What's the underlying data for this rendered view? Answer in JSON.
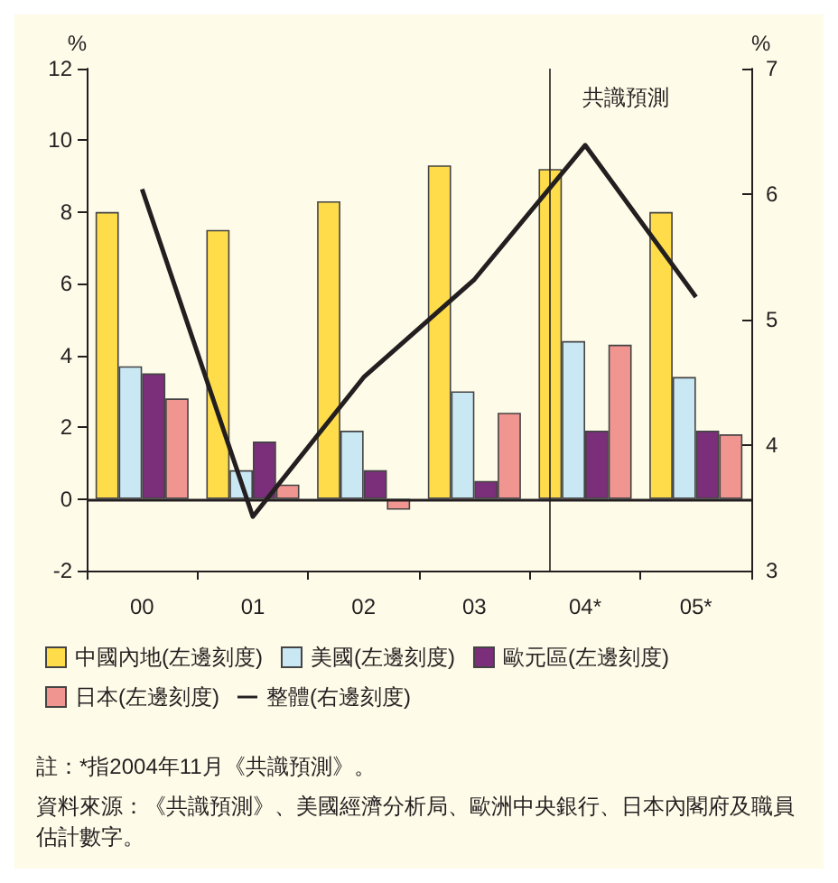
{
  "chart_data": {
    "type": "bar",
    "categories": [
      "00",
      "01",
      "02",
      "03",
      "04*",
      "05*"
    ],
    "series": [
      {
        "name": "中國內地(左邊刻度)",
        "color": "#fedc4a",
        "values": [
          8.0,
          7.5,
          8.3,
          9.3,
          9.2,
          8.0
        ]
      },
      {
        "name": "美國(左邊刻度)",
        "color": "#c9e8f4",
        "values": [
          3.7,
          0.8,
          1.9,
          3.0,
          4.4,
          3.4
        ]
      },
      {
        "name": "歐元區(左邊刻度)",
        "color": "#7b2e7a",
        "values": [
          3.5,
          1.6,
          0.8,
          0.5,
          1.9,
          1.9
        ]
      },
      {
        "name": "日本(左邊刻度)",
        "color": "#f09590",
        "values": [
          2.8,
          0.4,
          -0.3,
          2.4,
          4.3,
          1.8
        ]
      },
      {
        "name": "整體(右邊刻度)",
        "type": "line",
        "axis": "y2",
        "color": "#231f20",
        "values": [
          6.04,
          3.43,
          4.54,
          5.32,
          6.39,
          5.18
        ]
      }
    ],
    "ylabel": "%",
    "y2label": "%",
    "ylim": [
      -2,
      12
    ],
    "yticks": [
      -2,
      0,
      2,
      4,
      6,
      8,
      10,
      12
    ],
    "y2lim": [
      3,
      7
    ],
    "y2ticks": [
      3,
      4,
      5,
      6,
      7
    ],
    "ref_lines": [
      {
        "axis": "y",
        "value": 0
      },
      {
        "axis": "x",
        "value": "04*",
        "label": "共識預測"
      }
    ],
    "grid": false,
    "legend": "bottom",
    "marker": "none",
    "line_style": "solid",
    "annotations": [
      "註：*指2004年11月《共識預測》。",
      "資料來源：《共識預測》、美國經濟分析局、歐洲中央銀行、日本內閣府及職員估計數字。"
    ]
  }
}
